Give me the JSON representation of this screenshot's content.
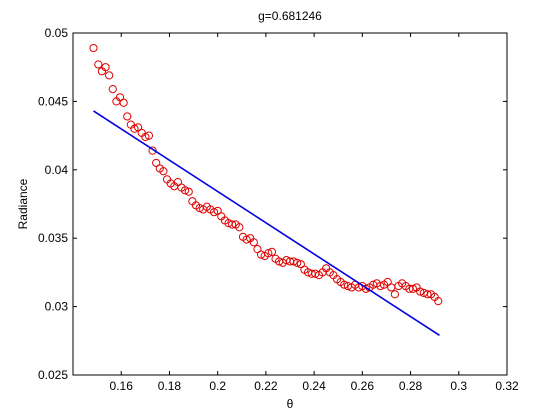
{
  "chart_data": {
    "type": "scatter",
    "title": "g=0.681246",
    "xlabel": "θ",
    "ylabel": "Radiance",
    "xlim": [
      0.14,
      0.32
    ],
    "ylim": [
      0.025,
      0.05
    ],
    "xticks": [
      0.16,
      0.18,
      0.2,
      0.22,
      0.24,
      0.26,
      0.28,
      0.3,
      0.32
    ],
    "xtick_labels": [
      "0.16",
      "0.18",
      "0.2",
      "0.22",
      "0.24",
      "0.26",
      "0.28",
      "0.3",
      "0.32"
    ],
    "yticks": [
      0.025,
      0.03,
      0.035,
      0.04,
      0.045,
      0.05
    ],
    "ytick_labels": [
      "0.025",
      "0.03",
      "0.035",
      "0.04",
      "0.045",
      "0.05"
    ],
    "grid": false,
    "box": true,
    "colors": {
      "points": "#e00000",
      "fit_line": "#0000e0",
      "axes": "#000000"
    },
    "series": [
      {
        "type": "scatter",
        "marker": "circle-open",
        "color": "#e00000",
        "x": [
          0.1485,
          0.1505,
          0.152,
          0.1535,
          0.155,
          0.1565,
          0.158,
          0.1595,
          0.161,
          0.1625,
          0.164,
          0.1655,
          0.167,
          0.1685,
          0.17,
          0.1715,
          0.173,
          0.1745,
          0.176,
          0.1775,
          0.179,
          0.1805,
          0.182,
          0.1835,
          0.185,
          0.1865,
          0.188,
          0.1895,
          0.191,
          0.1925,
          0.194,
          0.1955,
          0.197,
          0.1985,
          0.2,
          0.2015,
          0.203,
          0.2045,
          0.206,
          0.2075,
          0.209,
          0.2105,
          0.212,
          0.2135,
          0.215,
          0.2165,
          0.218,
          0.2195,
          0.221,
          0.2225,
          0.224,
          0.2255,
          0.227,
          0.2285,
          0.23,
          0.2315,
          0.233,
          0.2345,
          0.236,
          0.2375,
          0.239,
          0.2405,
          0.242,
          0.2435,
          0.245,
          0.2465,
          0.248,
          0.2495,
          0.251,
          0.2525,
          0.254,
          0.2555,
          0.257,
          0.2585,
          0.26,
          0.2615,
          0.263,
          0.2645,
          0.266,
          0.2675,
          0.269,
          0.2705,
          0.272,
          0.2735,
          0.275,
          0.2765,
          0.278,
          0.2795,
          0.281,
          0.2825,
          0.284,
          0.2855,
          0.287,
          0.2885,
          0.29,
          0.2915
        ],
        "y": [
          0.0489,
          0.0477,
          0.0472,
          0.0475,
          0.0469,
          0.0459,
          0.045,
          0.0453,
          0.0449,
          0.0439,
          0.0433,
          0.043,
          0.0431,
          0.0427,
          0.0424,
          0.0425,
          0.0414,
          0.0405,
          0.0401,
          0.0399,
          0.0393,
          0.039,
          0.0388,
          0.0391,
          0.0387,
          0.0385,
          0.0384,
          0.0377,
          0.0374,
          0.0372,
          0.0371,
          0.0373,
          0.0371,
          0.0369,
          0.037,
          0.0366,
          0.0363,
          0.0361,
          0.036,
          0.036,
          0.0358,
          0.0351,
          0.0349,
          0.035,
          0.0347,
          0.0342,
          0.0338,
          0.0337,
          0.0339,
          0.034,
          0.0335,
          0.0333,
          0.0332,
          0.0334,
          0.0333,
          0.0333,
          0.0332,
          0.0331,
          0.0327,
          0.0325,
          0.0324,
          0.0324,
          0.0323,
          0.0325,
          0.0328,
          0.0325,
          0.0323,
          0.032,
          0.0318,
          0.0316,
          0.0315,
          0.0314,
          0.0316,
          0.0314,
          0.0315,
          0.0313,
          0.0314,
          0.0316,
          0.0317,
          0.0315,
          0.0316,
          0.0318,
          0.0314,
          0.0309,
          0.0315,
          0.0317,
          0.0315,
          0.0313,
          0.0313,
          0.0314,
          0.0311,
          0.031,
          0.0309,
          0.0309,
          0.0307,
          0.0304
        ]
      },
      {
        "type": "line",
        "color": "#0000e0",
        "x": [
          0.1485,
          0.292
        ],
        "y": [
          0.0443,
          0.0279
        ]
      }
    ]
  }
}
